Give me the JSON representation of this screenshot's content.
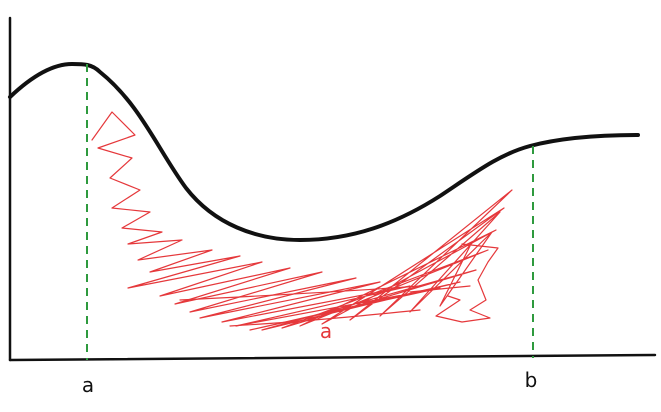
{
  "labels": {
    "left_bound": "a",
    "right_bound": "b",
    "area": "a"
  },
  "colors": {
    "curve": "#111111",
    "axes": "#111111",
    "guide": "#2e9a3e",
    "shade": "#e5383b",
    "label": "#111111",
    "area_label": "#e5383b"
  }
}
